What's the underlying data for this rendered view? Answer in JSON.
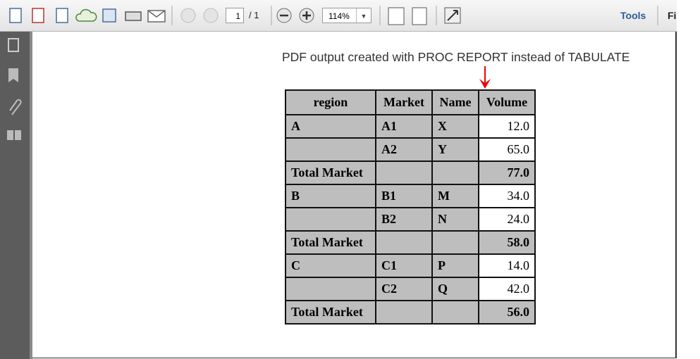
{
  "toolbar": {
    "page_number": "1",
    "page_count": "/ 1",
    "zoom": "114%",
    "tools": "Tools",
    "fill_sign": "Fi"
  },
  "annotation": "PDF output created with PROC REPORT instead of TABULATE",
  "table": {
    "header": [
      "region",
      "Market",
      "Name",
      "Volume"
    ],
    "rows": [
      [
        "A",
        "A1",
        "X",
        "12.0"
      ],
      [
        null,
        "A2",
        "Y",
        "65.0"
      ],
      [
        "Total Market",
        null,
        null,
        "77.0"
      ],
      [
        "B",
        "B1",
        "M",
        "34.0"
      ],
      [
        null,
        "B2",
        "N",
        "24.0"
      ],
      [
        "Total Market",
        null,
        null,
        "58.0"
      ],
      [
        "C",
        "C1",
        "P",
        "14.0"
      ],
      [
        null,
        "C2",
        "Q",
        "42.0"
      ],
      [
        "Total Market",
        null,
        null,
        "56.0"
      ]
    ]
  }
}
